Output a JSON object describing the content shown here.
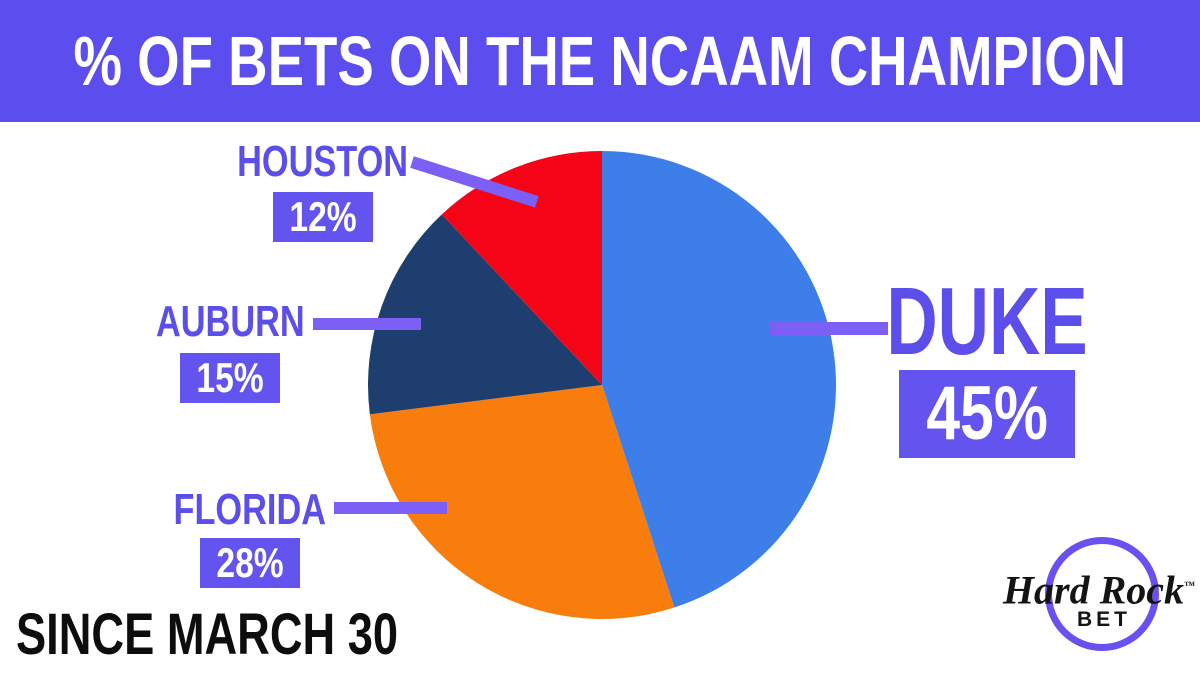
{
  "header": {
    "title": "% OF BETS ON THE NCAAM CHAMPION"
  },
  "chart_data": {
    "type": "pie",
    "title": "% OF BETS ON THE NCAAM CHAMPION",
    "start_angle_deg": 0,
    "direction": "clockwise",
    "legend_position": "callout-labels",
    "slices": [
      {
        "label": "DUKE",
        "value": 45,
        "pct_label": "45%",
        "color": "#3D7EE9"
      },
      {
        "label": "FLORIDA",
        "value": 28,
        "pct_label": "28%",
        "color": "#F87D0C"
      },
      {
        "label": "AUBURN",
        "value": 15,
        "pct_label": "15%",
        "color": "#1F3E70"
      },
      {
        "label": "HOUSTON",
        "value": 12,
        "pct_label": "12%",
        "color": "#F50418"
      }
    ]
  },
  "footer": {
    "since": "SINCE MARCH 30"
  },
  "logo": {
    "brand": "Hard Rock",
    "sub": "BET",
    "trademark": "™"
  },
  "colors": {
    "header_bg": "#5C4DEE",
    "header_text": "#FFFFFF",
    "label_text": "#5C4EEA",
    "badge_bg": "#6454EF",
    "badge_text": "#FFFFFF",
    "leader_line": "#7C60F5",
    "since_text": "#0D0D0D",
    "logo_ring": "#6C4FF0",
    "logo_text": "#141414",
    "background": "#FFFFFF"
  }
}
